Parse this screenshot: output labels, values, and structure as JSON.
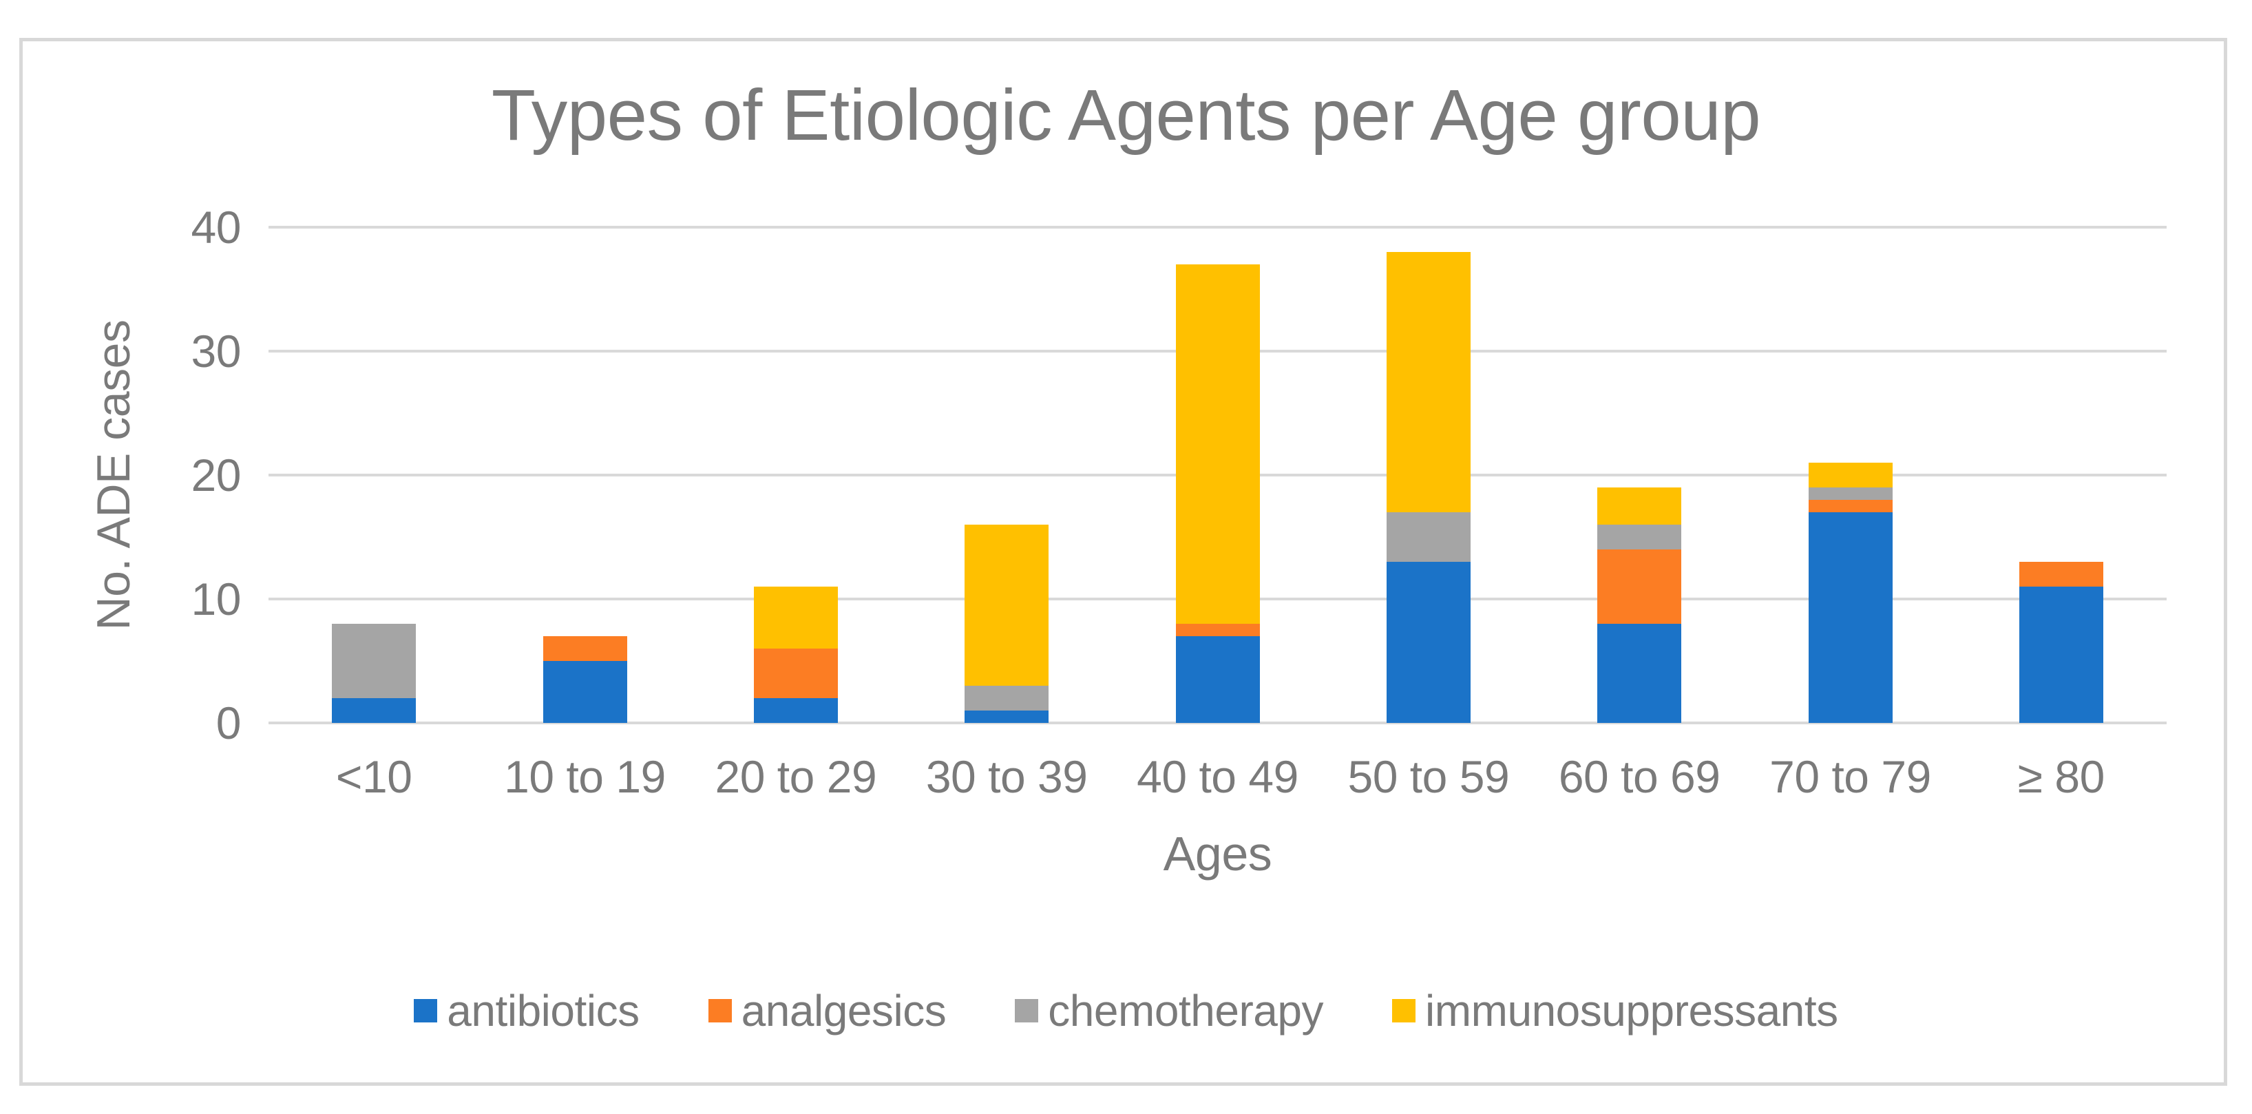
{
  "title": "Types of Etiologic Agents per Age group",
  "colors": {
    "text": "#7A7A7A",
    "grid": "#D9D9D9",
    "border": "#D8D8D8",
    "background": "#FFFFFF"
  },
  "chart_data": {
    "type": "bar",
    "stacked": true,
    "title": "Types of Etiologic Agents per Age group",
    "xlabel": "Ages",
    "ylabel": "No. ADE cases",
    "categories": [
      "<10",
      "10 to 19",
      "20 to 29",
      "30 to 39",
      "40 to 49",
      "50 to 59",
      "60 to 69",
      "70 to 79",
      "≥ 80"
    ],
    "series": [
      {
        "name": "antibiotics",
        "color": "#1B73C8",
        "values": [
          2,
          5,
          2,
          1,
          7,
          13,
          8,
          17,
          11
        ]
      },
      {
        "name": "analgesics",
        "color": "#FC7D23",
        "values": [
          0,
          2,
          4,
          0,
          1,
          0,
          6,
          1,
          2
        ]
      },
      {
        "name": "chemotherapy",
        "color": "#A5A5A5",
        "values": [
          6,
          0,
          0,
          2,
          0,
          4,
          2,
          1,
          0
        ]
      },
      {
        "name": "immunosuppressants",
        "color": "#FFC000",
        "values": [
          0,
          0,
          5,
          13,
          29,
          21,
          3,
          2,
          0
        ]
      }
    ],
    "stack_totals": [
      8,
      7,
      11,
      16,
      37,
      38,
      19,
      21,
      13
    ],
    "ylim": [
      0,
      40
    ],
    "yticks": [
      0,
      10,
      20,
      30,
      40
    ],
    "grid": true,
    "legend_position": "bottom"
  }
}
